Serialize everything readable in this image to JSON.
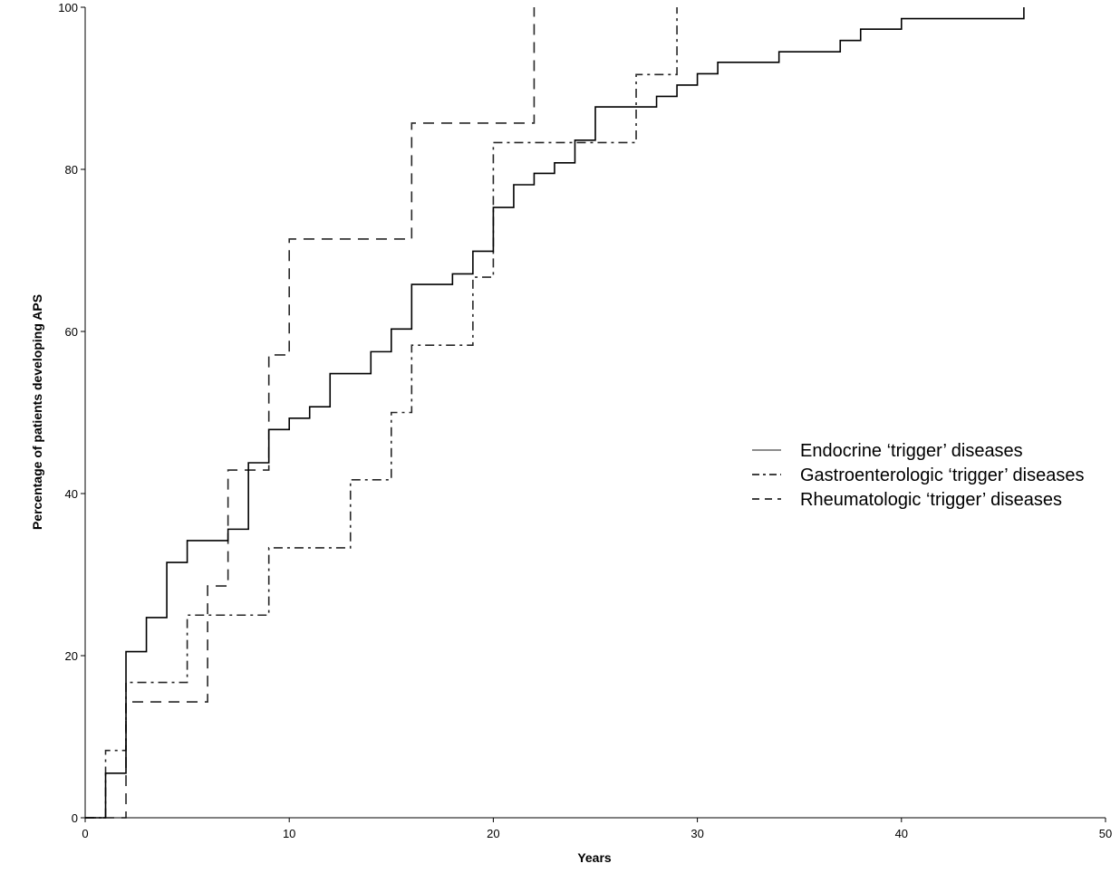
{
  "chart_data": {
    "type": "line",
    "step": true,
    "title": "",
    "xlabel": "Years",
    "ylabel": "Percentage of patients developing APS",
    "xlim": [
      0,
      50
    ],
    "ylim": [
      0,
      100
    ],
    "xticks": [
      0,
      10,
      20,
      30,
      40,
      50
    ],
    "yticks": [
      0,
      20,
      40,
      60,
      80,
      100
    ],
    "grid": false,
    "legend_position": "right",
    "series": [
      {
        "name": "Endocrine ‘trigger’ diseases",
        "style": "solid",
        "color": "#000000",
        "x": [
          0,
          1,
          2,
          3,
          4,
          5,
          7,
          8,
          9,
          10,
          11,
          12,
          14,
          15,
          16,
          18,
          19,
          20,
          21,
          22,
          23,
          24,
          25,
          27,
          28,
          29,
          30,
          31,
          34,
          37,
          38,
          40,
          46
        ],
        "y": [
          0,
          5.5,
          20.5,
          24.7,
          31.5,
          34.2,
          35.6,
          43.8,
          47.9,
          49.3,
          50.7,
          54.8,
          57.5,
          60.3,
          65.8,
          67.1,
          69.9,
          75.3,
          78.1,
          79.5,
          80.8,
          83.6,
          87.7,
          87.7,
          89.0,
          90.4,
          91.8,
          93.2,
          94.5,
          95.9,
          97.3,
          98.6,
          100
        ]
      },
      {
        "name": "Gastroenterologic ‘trigger’ diseases",
        "style": "dash-dot",
        "color": "#000000",
        "x": [
          0,
          1,
          2,
          5,
          9,
          13,
          15,
          16,
          19,
          20,
          27,
          29
        ],
        "y": [
          0,
          8.3,
          16.7,
          25.0,
          33.3,
          41.7,
          50.0,
          58.3,
          66.7,
          83.3,
          91.7,
          100
        ]
      },
      {
        "name": "Rheumatologic ‘trigger’ diseases",
        "style": "dashed",
        "color": "#000000",
        "x": [
          0,
          2,
          6,
          7,
          9,
          10,
          16,
          22
        ],
        "y": [
          0,
          14.3,
          28.6,
          42.9,
          57.1,
          71.4,
          85.7,
          100
        ]
      }
    ]
  }
}
